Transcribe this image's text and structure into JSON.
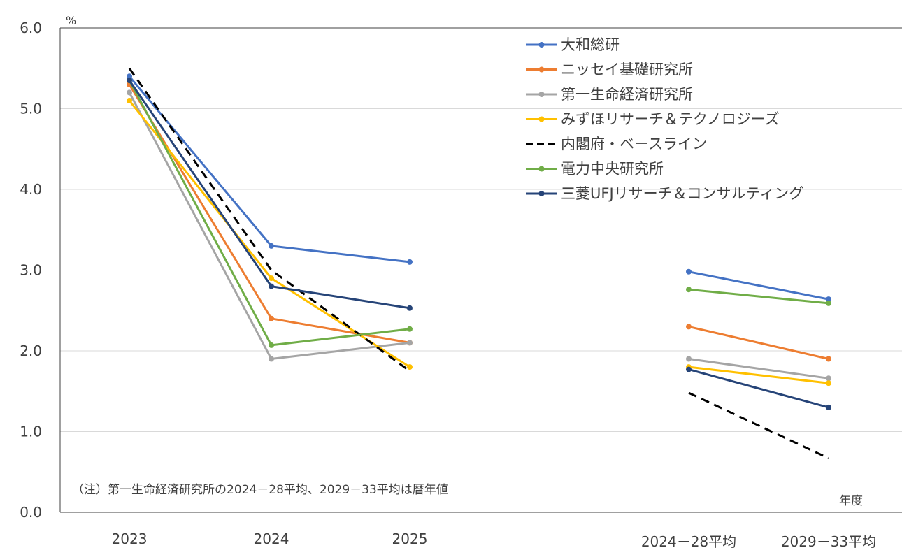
{
  "chart_data": {
    "type": "line",
    "title": "",
    "y_unit_label": "%",
    "x_unit_label": "年度",
    "ylim": [
      0,
      6
    ],
    "y_ticks": [
      "0.0",
      "1.0",
      "2.0",
      "3.0",
      "4.0",
      "5.0",
      "6.0"
    ],
    "categories": [
      "2023",
      "2024",
      "2025",
      "2024－28平均",
      "2029－33平均"
    ],
    "grid": true,
    "legend_position": "top-right",
    "note": "（注）第一生命経済研究所の2024－28平均、2029－33平均は暦年値",
    "series": [
      {
        "name": "大和総研",
        "color": "#4472C4",
        "dash": false,
        "values": [
          5.4,
          3.3,
          3.1,
          2.98,
          2.64
        ]
      },
      {
        "name": "ニッセイ基礎研究所",
        "color": "#ED7D31",
        "dash": false,
        "values": [
          5.3,
          2.4,
          2.1,
          2.3,
          1.9
        ]
      },
      {
        "name": "第一生命経済研究所",
        "color": "#A5A5A5",
        "dash": false,
        "values": [
          5.2,
          1.9,
          2.1,
          1.9,
          1.66
        ]
      },
      {
        "name": "みずほリサーチ＆テクノロジーズ",
        "color": "#FFC000",
        "dash": false,
        "values": [
          5.1,
          2.9,
          1.8,
          1.8,
          1.6
        ]
      },
      {
        "name": "内閣府・ベースライン",
        "color": "#000000",
        "dash": true,
        "values": [
          5.5,
          3.0,
          1.75,
          1.48,
          0.67
        ]
      },
      {
        "name": "電力中央研究所",
        "color": "#70AD47",
        "dash": false,
        "values": [
          5.35,
          2.07,
          2.27,
          2.76,
          2.59
        ]
      },
      {
        "name": "三菱UFJリサーチ＆コンサルティング",
        "color": "#264478",
        "dash": false,
        "values": [
          5.35,
          2.8,
          2.53,
          1.77,
          1.3
        ]
      }
    ]
  }
}
